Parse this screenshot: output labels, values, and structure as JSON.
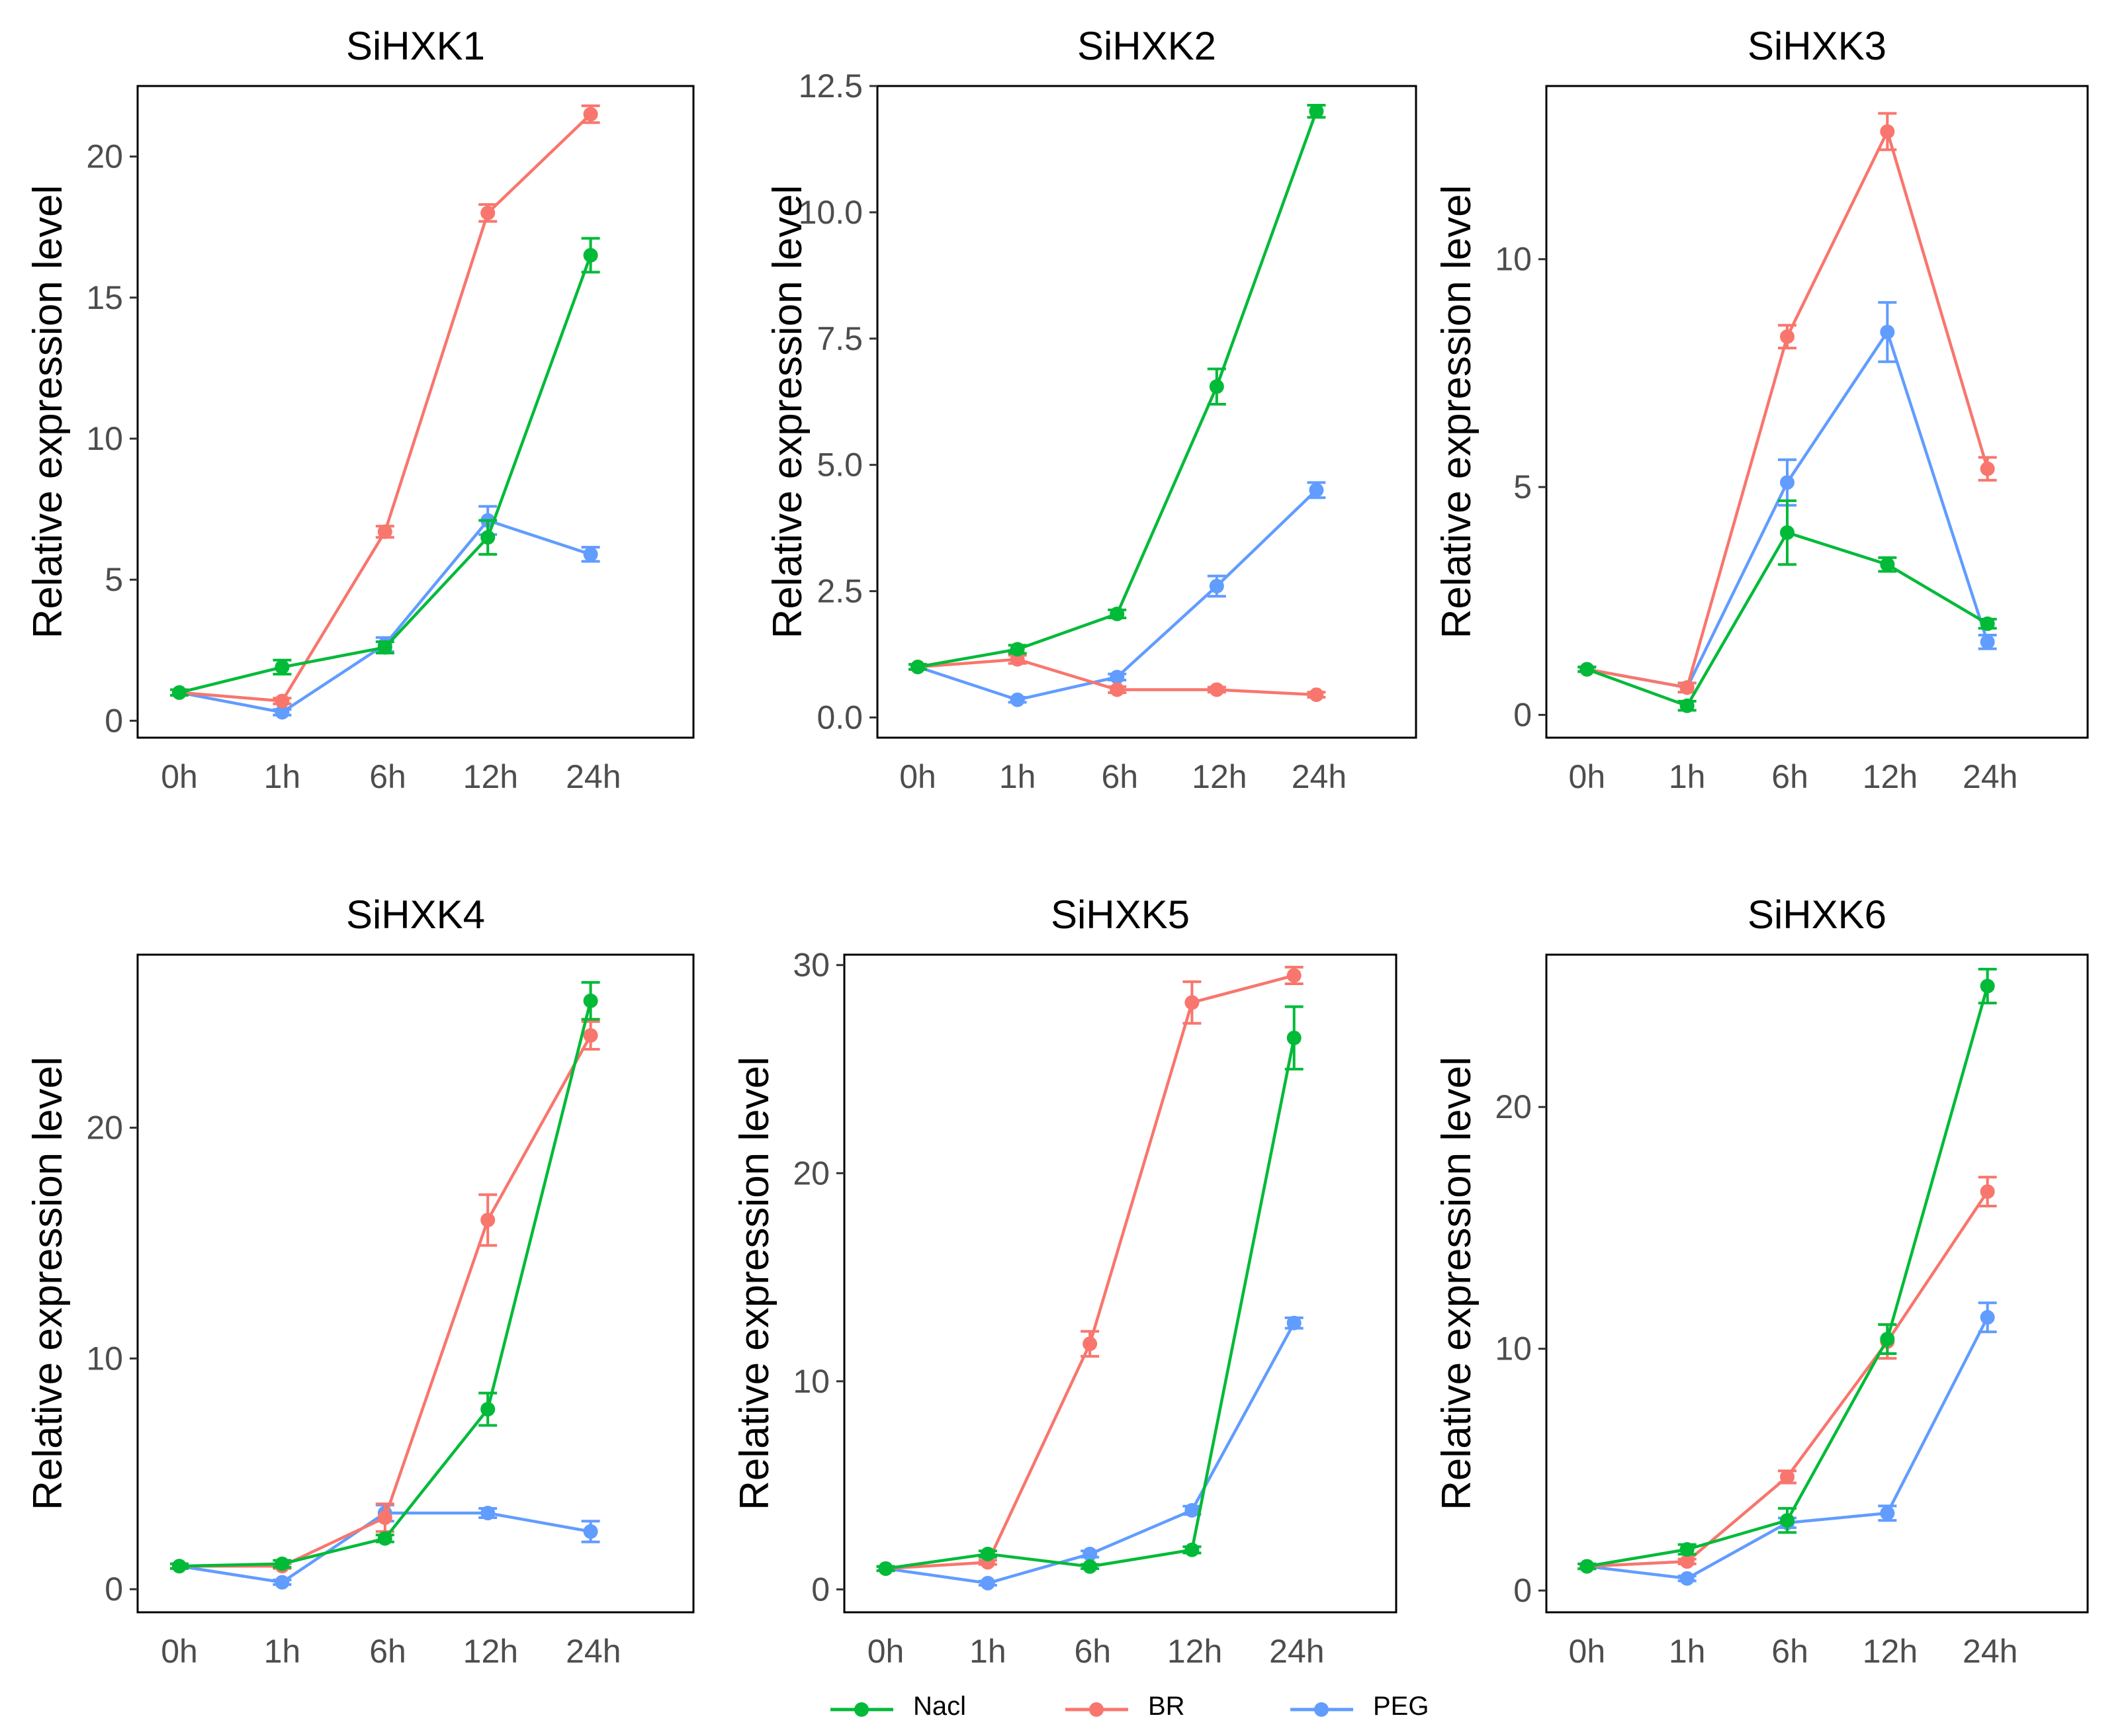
{
  "colors": {
    "Nacl": "#00ba38",
    "BR": "#f8766d",
    "PEG": "#619cff",
    "axis": "#000000",
    "tick_text": "#4d4d4d"
  },
  "legend": {
    "items": [
      {
        "label": "Nacl",
        "color": "#00ba38"
      },
      {
        "label": "BR",
        "color": "#f8766d"
      },
      {
        "label": "PEG",
        "color": "#619cff"
      }
    ]
  },
  "chart_data": [
    {
      "type": "line",
      "title": "SiHXK1",
      "ylabel": "Relative expression level",
      "xlabel": "",
      "x_tick_labels": [
        "0h",
        "1h",
        "6h",
        "12h",
        "24h"
      ],
      "y_ticks": [
        0,
        5,
        10,
        15,
        20
      ],
      "y_tick_labels": [
        "0",
        "5",
        "10",
        "15",
        "20"
      ],
      "ylim": [
        -0.6,
        22.5
      ],
      "series": [
        {
          "name": "Nacl",
          "values": [
            1.0,
            1.9,
            2.6,
            6.5,
            16.5
          ],
          "errors": [
            0.1,
            0.25,
            0.2,
            0.6,
            0.6
          ]
        },
        {
          "name": "BR",
          "values": [
            1.0,
            0.7,
            6.7,
            18.0,
            21.5
          ],
          "errors": [
            0.1,
            0.1,
            0.2,
            0.3,
            0.3
          ]
        },
        {
          "name": "PEG",
          "values": [
            1.0,
            0.3,
            2.7,
            7.1,
            5.9
          ],
          "errors": [
            0.1,
            0.1,
            0.25,
            0.5,
            0.25
          ]
        }
      ]
    },
    {
      "type": "line",
      "title": "SiHXK2",
      "ylabel": "Relative expression level",
      "xlabel": "",
      "x_tick_labels": [
        "0h",
        "1h",
        "6h",
        "12h",
        "24h"
      ],
      "y_ticks": [
        0,
        2.5,
        5,
        7.5,
        10,
        12.5
      ],
      "y_tick_labels": [
        "0.0",
        "2.5",
        "5.0",
        "7.5",
        "10.0",
        "12.5"
      ],
      "ylim": [
        -0.4,
        12.5
      ],
      "series": [
        {
          "name": "Nacl",
          "values": [
            1.0,
            1.35,
            2.05,
            6.55,
            12.0
          ],
          "errors": [
            0.05,
            0.08,
            0.08,
            0.35,
            0.12
          ]
        },
        {
          "name": "BR",
          "values": [
            1.0,
            1.15,
            0.55,
            0.55,
            0.45
          ],
          "errors": [
            0.05,
            0.08,
            0.06,
            0.05,
            0.05
          ]
        },
        {
          "name": "PEG",
          "values": [
            1.0,
            0.35,
            0.8,
            2.6,
            4.5
          ],
          "errors": [
            0.05,
            0.05,
            0.06,
            0.2,
            0.15
          ]
        }
      ]
    },
    {
      "type": "line",
      "title": "SiHXK3",
      "ylabel": "Relative expression level",
      "xlabel": "",
      "x_tick_labels": [
        "0h",
        "1h",
        "6h",
        "12h",
        "24h"
      ],
      "y_ticks": [
        0,
        5,
        10
      ],
      "y_tick_labels": [
        "0",
        "5",
        "10"
      ],
      "ylim": [
        -0.5,
        13.8
      ],
      "series": [
        {
          "name": "Nacl",
          "values": [
            1.0,
            0.2,
            4.0,
            3.3,
            2.0
          ],
          "errors": [
            0.05,
            0.1,
            0.7,
            0.15,
            0.1
          ]
        },
        {
          "name": "BR",
          "values": [
            1.0,
            0.6,
            8.3,
            12.8,
            5.4
          ],
          "errors": [
            0.05,
            0.1,
            0.25,
            0.4,
            0.25
          ]
        },
        {
          "name": "PEG",
          "values": [
            1.0,
            0.6,
            5.1,
            8.4,
            1.6
          ],
          "errors": [
            0.05,
            0.1,
            0.5,
            0.65,
            0.15
          ]
        }
      ]
    },
    {
      "type": "line",
      "title": "SiHXK4",
      "ylabel": "Relative expression level",
      "xlabel": "",
      "x_tick_labels": [
        "0h",
        "1h",
        "6h",
        "12h",
        "24h"
      ],
      "y_ticks": [
        0,
        10,
        20
      ],
      "y_tick_labels": [
        "0",
        "10",
        "20"
      ],
      "ylim": [
        -1.0,
        27.5
      ],
      "series": [
        {
          "name": "Nacl",
          "values": [
            1.0,
            1.1,
            2.2,
            7.8,
            25.5
          ],
          "errors": [
            0.1,
            0.15,
            0.15,
            0.7,
            0.8
          ]
        },
        {
          "name": "BR",
          "values": [
            1.0,
            1.0,
            3.1,
            16.0,
            24.0
          ],
          "errors": [
            0.1,
            0.1,
            0.6,
            1.1,
            0.6
          ]
        },
        {
          "name": "PEG",
          "values": [
            1.0,
            0.3,
            3.3,
            3.3,
            2.5
          ],
          "errors": [
            0.1,
            0.1,
            0.35,
            0.2,
            0.45
          ]
        }
      ]
    },
    {
      "type": "line",
      "title": "SiHXK5",
      "ylabel": "Relative expression level",
      "xlabel": "",
      "x_tick_labels": [
        "0h",
        "1h",
        "6h",
        "12h",
        "24h"
      ],
      "y_ticks": [
        0,
        10,
        20,
        30
      ],
      "y_tick_labels": [
        "0",
        "10",
        "20",
        "30"
      ],
      "ylim": [
        -1.1,
        30.5
      ],
      "series": [
        {
          "name": "Nacl",
          "values": [
            1.0,
            1.7,
            1.1,
            1.9,
            26.5
          ],
          "errors": [
            0.1,
            0.15,
            0.1,
            0.15,
            1.5
          ]
        },
        {
          "name": "BR",
          "values": [
            1.0,
            1.3,
            11.8,
            28.2,
            29.5
          ],
          "errors": [
            0.1,
            0.1,
            0.6,
            1.0,
            0.4
          ]
        },
        {
          "name": "PEG",
          "values": [
            1.0,
            0.3,
            1.7,
            3.8,
            12.8
          ],
          "errors": [
            0.1,
            0.1,
            0.15,
            0.2,
            0.25
          ]
        }
      ]
    },
    {
      "type": "line",
      "title": "SiHXK6",
      "ylabel": "Relative expression level",
      "xlabel": "",
      "x_tick_labels": [
        "0h",
        "1h",
        "6h",
        "12h",
        "24h"
      ],
      "y_ticks": [
        0,
        10,
        20
      ],
      "y_tick_labels": [
        "0",
        "10",
        "20"
      ],
      "ylim": [
        -0.9,
        26.3
      ],
      "series": [
        {
          "name": "Nacl",
          "values": [
            1.0,
            1.7,
            2.9,
            10.4,
            25.0
          ],
          "errors": [
            0.1,
            0.2,
            0.5,
            0.6,
            0.7
          ]
        },
        {
          "name": "BR",
          "values": [
            1.0,
            1.2,
            4.7,
            10.3,
            16.5
          ],
          "errors": [
            0.1,
            0.1,
            0.25,
            0.7,
            0.6
          ]
        },
        {
          "name": "PEG",
          "values": [
            1.0,
            0.5,
            2.8,
            3.2,
            11.3
          ],
          "errors": [
            0.1,
            0.1,
            0.2,
            0.3,
            0.6
          ]
        }
      ]
    }
  ]
}
